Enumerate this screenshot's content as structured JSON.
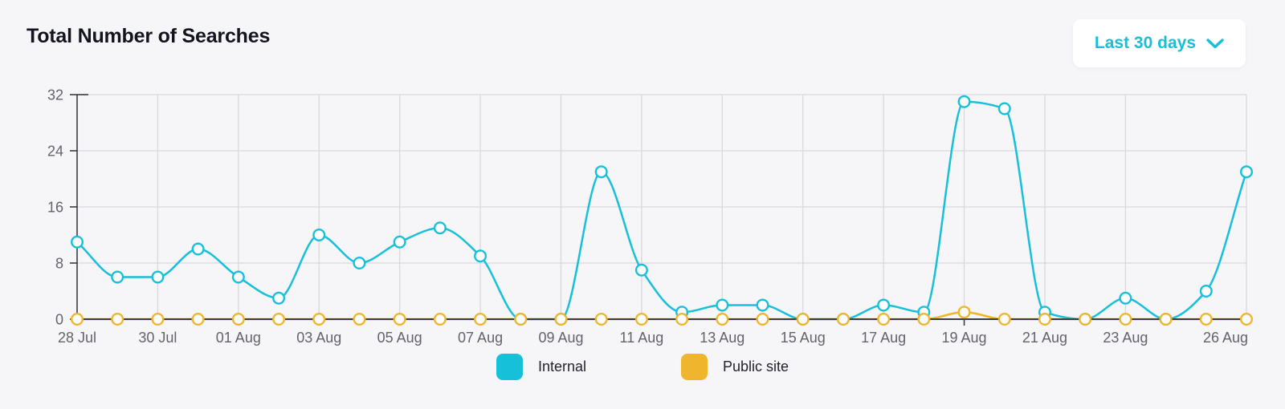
{
  "header": {
    "title": "Total Number of Searches",
    "range_selector": {
      "label": "Last 30 days",
      "icon": "chevron-down"
    }
  },
  "legend": {
    "position": "bottom",
    "items": [
      {
        "label": "Internal",
        "color": "#17c0d9"
      },
      {
        "label": "Public site",
        "color": "#efb52d"
      }
    ]
  },
  "chart_data": {
    "type": "line",
    "title": "Total Number of Searches",
    "curve": "monotone",
    "grid": true,
    "legend_position": "bottom",
    "x": [
      "28 Jul",
      "29 Jul",
      "30 Jul",
      "31 Jul",
      "01 Aug",
      "02 Aug",
      "03 Aug",
      "04 Aug",
      "05 Aug",
      "06 Aug",
      "07 Aug",
      "08 Aug",
      "09 Aug",
      "10 Aug",
      "11 Aug",
      "12 Aug",
      "13 Aug",
      "14 Aug",
      "15 Aug",
      "16 Aug",
      "17 Aug",
      "18 Aug",
      "19 Aug",
      "20 Aug",
      "21 Aug",
      "22 Aug",
      "23 Aug",
      "24 Aug",
      "25 Aug",
      "26 Aug"
    ],
    "x_tick_indices": [
      0,
      2,
      4,
      6,
      8,
      10,
      12,
      14,
      16,
      18,
      20,
      22,
      24,
      26,
      29
    ],
    "x_tick_labels": [
      "28 Jul",
      "30 Jul",
      "01 Aug",
      "03 Aug",
      "05 Aug",
      "07 Aug",
      "09 Aug",
      "11 Aug",
      "13 Aug",
      "15 Aug",
      "17 Aug",
      "19 Aug",
      "21 Aug",
      "23 Aug",
      "26 Aug"
    ],
    "ylim": [
      0,
      32
    ],
    "yticks": [
      0,
      8,
      16,
      24,
      32
    ],
    "series": [
      {
        "name": "Internal",
        "color": "#17c0d9",
        "values": [
          11,
          6,
          6,
          10,
          6,
          3,
          12,
          8,
          11,
          13,
          9,
          0,
          0,
          21,
          7,
          1,
          2,
          2,
          0,
          0,
          2,
          1,
          31,
          30,
          1,
          0,
          3,
          0,
          4,
          21
        ]
      },
      {
        "name": "Public site",
        "color": "#efb52d",
        "values": [
          0,
          0,
          0,
          0,
          0,
          0,
          0,
          0,
          0,
          0,
          0,
          0,
          0,
          0,
          0,
          0,
          0,
          0,
          0,
          0,
          0,
          0,
          1,
          0,
          0,
          0,
          0,
          0,
          0,
          0
        ]
      }
    ]
  },
  "colors": {
    "background": "#f6f5f8",
    "grid": "#d9d9dd",
    "axis": "#3b3b44",
    "tick_label": "#63636c",
    "title": "#14141f",
    "accent": "#17bfd8",
    "marker_fill": "#fdfdfe"
  }
}
